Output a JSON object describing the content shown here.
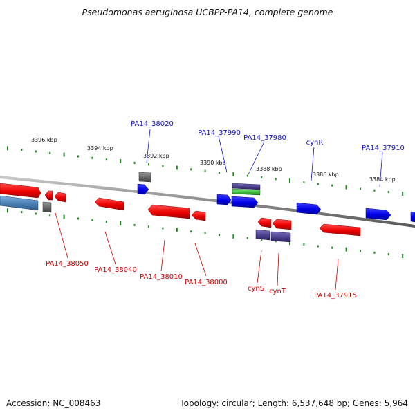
{
  "title": "Pseudomonas aeruginosa UCBPP-PA14, complete genome",
  "footer": {
    "accession": "Accession: NC_008463",
    "topology": "Topology: circular; Length: 6,537,648 bp; Genes: 5,964"
  },
  "colors": {
    "forward_gene": "#0000e0",
    "reverse_gene": "#e00000",
    "other_feature": "#606060",
    "steelblue_feature": "#4a7fb5",
    "purple_feature": "#4a3f8c",
    "green_feature": "#3fbf3f",
    "tick": "#1a8a1a",
    "backbone": "#888888",
    "label_blue": "#1010c8",
    "label_red": "#cc0000"
  },
  "scale_labels": [
    "3396 kbp",
    "3394 kbp",
    "3392 kbp",
    "3390 kbp",
    "3388 kbp",
    "3386 kbp",
    "3384 kbp"
  ],
  "gene_labels_top": [
    "PA14_38020",
    "PA14_37990",
    "PA14_37980",
    "cynR",
    "PA14_37910"
  ],
  "gene_labels_bottom": [
    "PA14_38050",
    "PA14_38040",
    "PA14_38010",
    "PA14_38000",
    "cynS",
    "cynT",
    "PA14_37915"
  ]
}
